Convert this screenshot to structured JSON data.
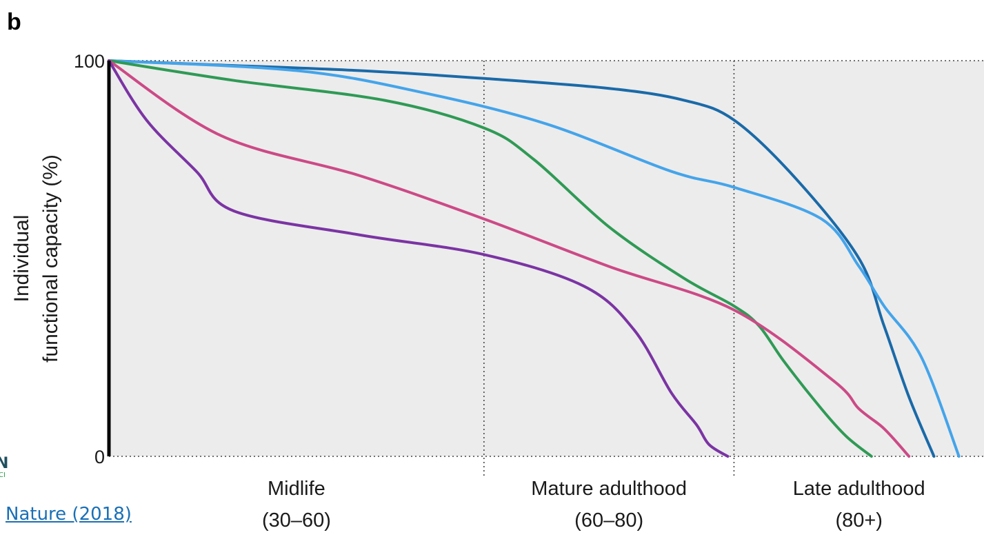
{
  "panel_letter": "b",
  "source_link": "Nature (2018)",
  "logo": {
    "letter": "N",
    "sub": "CI"
  },
  "chart_data": {
    "type": "line",
    "ylabel_line1": "Individual",
    "ylabel_line2": "functional capacity (%)",
    "ylim": [
      0,
      100
    ],
    "xlim": [
      30,
      100
    ],
    "y_ticks": [
      "0",
      "100"
    ],
    "grid": false,
    "categories": [
      {
        "name": "Midlife",
        "range": "(30–60)",
        "start": 30,
        "end": 60
      },
      {
        "name": "Mature adulthood",
        "range": "(60–80)",
        "start": 60,
        "end": 80
      },
      {
        "name": "Late adulthood",
        "range": "(80+)",
        "start": 80,
        "end": 100
      }
    ],
    "series": [
      {
        "color": "#1a6aa8",
        "x": [
          30,
          38,
          50,
          60,
          70,
          76,
          80,
          85,
          90,
          92,
          94,
          96
        ],
        "y": [
          100,
          99,
          97.5,
          95.5,
          93,
          90,
          85,
          70,
          50,
          33,
          15,
          0
        ]
      },
      {
        "color": "#44a4ea",
        "x": [
          30,
          45,
          55,
          65,
          75,
          80,
          87,
          90,
          92,
          95,
          98
        ],
        "y": [
          100,
          97.5,
          92,
          84,
          72,
          68,
          60,
          48,
          38,
          25,
          0
        ]
      },
      {
        "color": "#2f9a55",
        "x": [
          30,
          40,
          52,
          60,
          64,
          70,
          76,
          80,
          82,
          84,
          87,
          89,
          91
        ],
        "y": [
          100,
          95,
          90,
          83,
          75,
          58,
          45,
          38,
          33,
          24,
          12,
          5,
          0
        ]
      },
      {
        "color": "#cc4a86",
        "x": [
          30,
          39,
          50,
          60,
          70,
          80,
          88,
          90,
          92,
          94
        ],
        "y": [
          100,
          81,
          71,
          60,
          48,
          37,
          19,
          12,
          7,
          0
        ]
      },
      {
        "color": "#7b34a3",
        "x": [
          30,
          33,
          37,
          40,
          50,
          60,
          68,
          72,
          75,
          77,
          78,
          79.5
        ],
        "y": [
          100,
          85,
          72,
          62,
          56,
          51,
          43,
          32,
          16,
          8,
          3,
          0
        ]
      }
    ]
  }
}
